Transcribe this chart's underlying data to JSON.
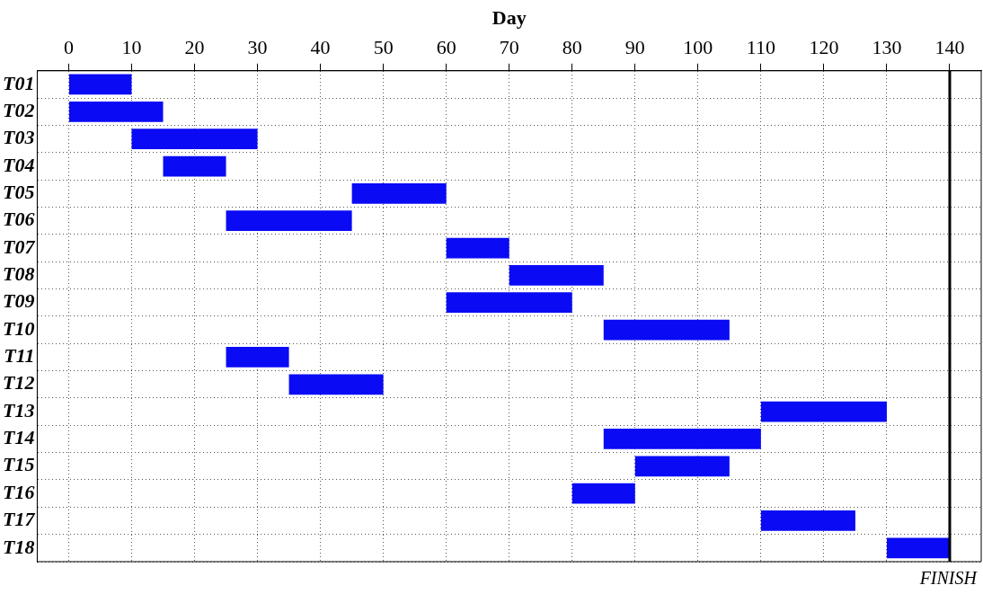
{
  "chart_data": {
    "type": "bar",
    "orientation": "horizontal",
    "xlabel": "Day",
    "categories": [
      "T01",
      "T02",
      "T03",
      "T04",
      "T05",
      "T06",
      "T07",
      "T08",
      "T09",
      "T10",
      "T11",
      "T12",
      "T13",
      "T14",
      "T15",
      "T16",
      "T17",
      "T18"
    ],
    "base": [
      0,
      0,
      10,
      15,
      45,
      25,
      60,
      70,
      60,
      85,
      25,
      35,
      110,
      85,
      90,
      80,
      110,
      130
    ],
    "values": [
      10,
      15,
      20,
      10,
      15,
      20,
      10,
      15,
      20,
      20,
      10,
      15,
      20,
      25,
      15,
      10,
      15,
      10
    ],
    "color": "#0a0af5",
    "xlim": [
      -5,
      145
    ],
    "xticks": [
      0,
      10,
      20,
      30,
      40,
      50,
      60,
      70,
      80,
      90,
      100,
      110,
      120,
      130,
      140
    ],
    "grid": true,
    "line_style": "dotted",
    "ref_lines": [
      {
        "axis": "x",
        "value": 140,
        "label": "FINISH",
        "color": "#000000",
        "line_style": "solid"
      }
    ],
    "legend": false
  }
}
